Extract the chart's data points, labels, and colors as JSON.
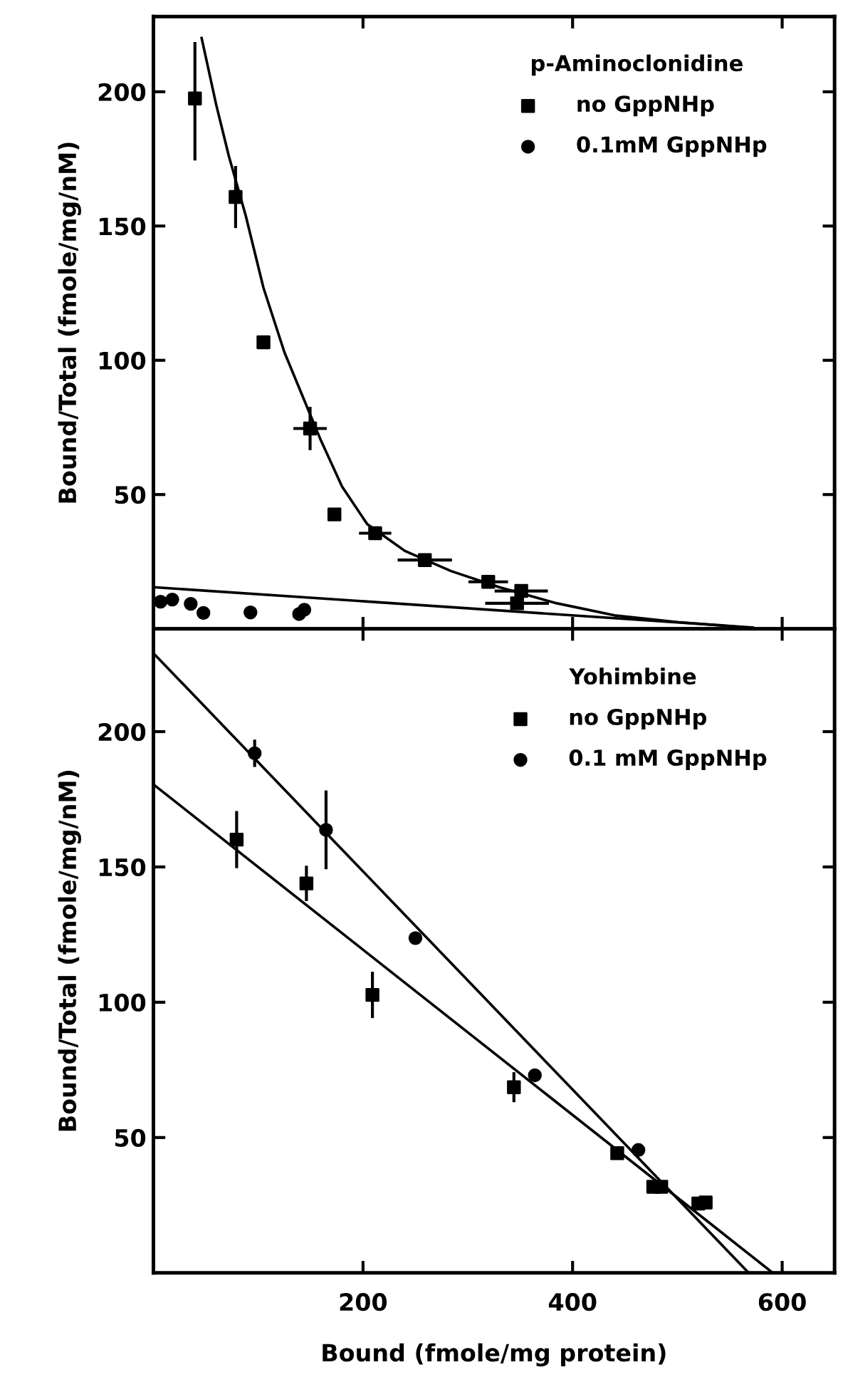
{
  "chart_data": [
    {
      "type": "scatter",
      "ylabel": "Bound/Total (fmole/mg/nM)",
      "legend_title": "p-Aminoclonidine",
      "legend": "top right",
      "grid": false,
      "tick_labels": "y",
      "xlim": [
        0,
        650
      ],
      "ylim": [
        0,
        228
      ],
      "xticks": [
        {
          "value": 200,
          "label": null
        },
        {
          "value": 400,
          "label": null
        },
        {
          "value": 600,
          "label": null
        }
      ],
      "yticks": [
        50,
        100,
        150,
        200
      ],
      "series": [
        {
          "name": "no GppNHp",
          "marker": "square",
          "color": "#000000",
          "x": [
            39.6,
            78.4,
            105,
            149.5,
            172.7,
            211.6,
            259,
            319.5,
            351,
            347
          ],
          "values": [
            197.5,
            160.8,
            106.7,
            74.6,
            42.6,
            35.6,
            25.6,
            17.5,
            14.1,
            9.5
          ],
          "errors": [
            [
              175,
              218
            ],
            11,
            null,
            7.5,
            null,
            null,
            null,
            null,
            null,
            null
          ],
          "xerrors": [
            null,
            null,
            null,
            14.5,
            null,
            14,
            24.5,
            17.5,
            24,
            29
          ]
        },
        {
          "name": "0.1mM GppNHp",
          "marker": "circle",
          "color": "#000000",
          "x": [
            6.8,
            18,
            35.6,
            47.7,
            92.6,
            139,
            144
          ],
          "values": [
            10.1,
            10.9,
            9.3,
            5.9,
            6.1,
            5.5,
            7.1
          ]
        },
        {
          "type": "line",
          "marker": "none",
          "line_style": "solid",
          "color": "#000000",
          "x": [
            46,
            60,
            72,
            88,
            105,
            125,
            143,
            160,
            180,
            204,
            240,
            284,
            330,
            385,
            440,
            500,
            572
          ],
          "values": [
            220,
            195,
            176,
            154,
            127,
            103,
            86,
            70,
            53,
            39,
            29,
            21.5,
            15.5,
            9.5,
            5,
            2.5,
            0.3
          ]
        },
        {
          "type": "line",
          "marker": "none",
          "line_style": "solid",
          "color": "#000000",
          "x": [
            0,
            572
          ],
          "values": [
            15.5,
            0.5
          ]
        }
      ]
    },
    {
      "type": "scatter",
      "xlabel": "Bound (fmole/mg protein)",
      "ylabel": "Bound/Total (fmole/mg/nM)",
      "legend_title": "Yohimbine",
      "legend": "top right",
      "grid": false,
      "xlim": [
        0,
        650
      ],
      "ylim": [
        0,
        238
      ],
      "xticks": [
        200,
        400,
        600
      ],
      "yticks": [
        50,
        100,
        150,
        200
      ],
      "series": [
        {
          "name": "no GppNHp",
          "marker": "square",
          "color": "#000000",
          "x": [
            79.4,
            146,
            209,
            344,
            442.6,
            477,
            484.6,
            520,
            527
          ],
          "values": [
            160.1,
            143.9,
            102.7,
            68.6,
            44.2,
            31.8,
            31.8,
            25.6,
            26
          ],
          "errors": [
            10,
            6,
            8,
            5,
            null,
            null,
            null,
            null,
            null
          ]
        },
        {
          "name": "0.1 mM GppNHp",
          "marker": "circle",
          "color": "#000000",
          "x": [
            96.6,
            164.7,
            250,
            364,
            462.8
          ],
          "values": [
            192,
            163.7,
            123.7,
            73,
            45.4
          ],
          "errors": [
            4.5,
            14,
            null,
            null,
            null
          ]
        },
        {
          "type": "line",
          "marker": "none",
          "line_style": "solid",
          "color": "#000000",
          "x": [
            0,
            568
          ],
          "values": [
            229,
            0
          ]
        },
        {
          "type": "line",
          "marker": "none",
          "line_style": "solid",
          "color": "#000000",
          "x": [
            0,
            591
          ],
          "values": [
            180.5,
            0
          ]
        }
      ]
    }
  ]
}
